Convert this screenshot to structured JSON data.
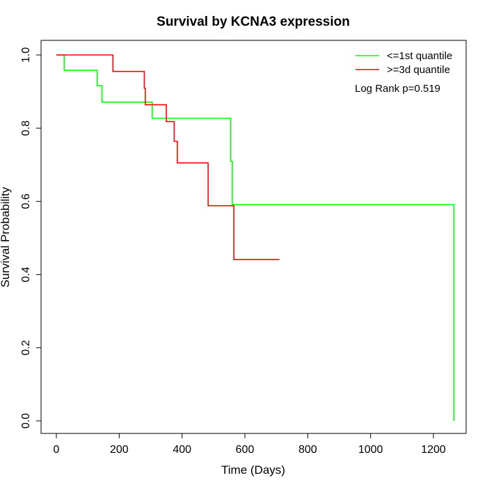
{
  "chart_data": {
    "type": "line",
    "title": "Survival by KCNA3 expression",
    "xlabel": "Time (Days)",
    "ylabel": "Survival Probability",
    "xlim": [
      0,
      1270
    ],
    "ylim": [
      0,
      1
    ],
    "xticks": [
      0,
      200,
      400,
      600,
      800,
      1000,
      1200
    ],
    "yticks": [
      0.0,
      0.2,
      0.4,
      0.6,
      0.8,
      1.0
    ],
    "xtick_labels": [
      "0",
      "200",
      "400",
      "600",
      "800",
      "1000",
      "1200"
    ],
    "ytick_labels": [
      "0.0",
      "0.2",
      "0.4",
      "0.6",
      "0.8",
      "1.0"
    ],
    "grid": false,
    "legend_position": "top-right",
    "annotation": "Log Rank p=0.519",
    "series": [
      {
        "name": "<=1st quantile",
        "color": "#00ff00",
        "step": true,
        "x": [
          0,
          25,
          130,
          145,
          300,
          305,
          550,
          555,
          560,
          1265,
          1265
        ],
        "y": [
          1.0,
          0.958,
          0.916,
          0.871,
          0.871,
          0.827,
          0.827,
          0.709,
          0.591,
          0.591,
          0.0
        ]
      },
      {
        "name": ">=3d quantile",
        "color": "#ff0000",
        "step": true,
        "x": [
          0,
          180,
          280,
          283,
          350,
          375,
          385,
          483,
          565,
          710
        ],
        "y": [
          1.0,
          0.955,
          0.909,
          0.864,
          0.818,
          0.764,
          0.705,
          0.588,
          0.441,
          0.441
        ]
      }
    ]
  }
}
